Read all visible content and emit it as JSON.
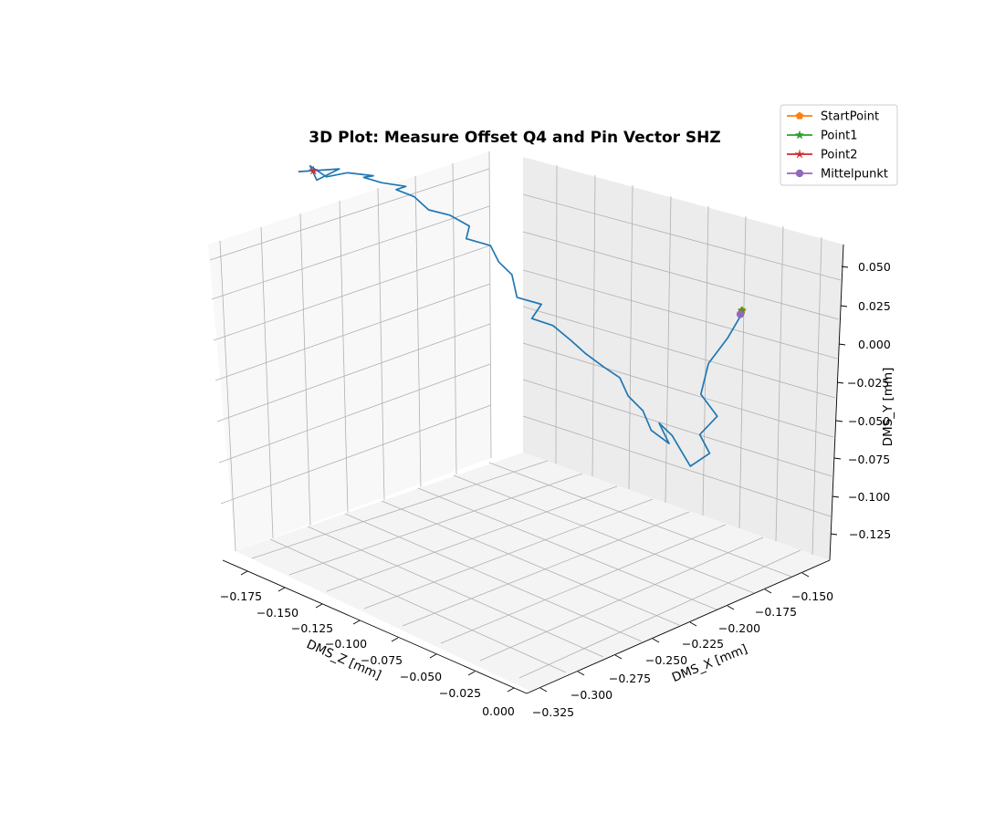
{
  "chart_data": {
    "type": "line",
    "projection": "3d",
    "title": "3D Plot: Measure Offset Q4 and Pin Vector SHZ",
    "axes": {
      "x": {
        "label": "DMS_X [mm]",
        "range": [
          -0.325,
          -0.14
        ],
        "ticks": [
          "−0.325",
          "−0.300",
          "−0.275",
          "−0.250",
          "−0.225",
          "−0.200",
          "−0.175",
          "−0.150"
        ]
      },
      "y": {
        "label": "DMS_Y [mm]",
        "range": [
          -0.14,
          0.06
        ],
        "ticks": [
          "−0.125",
          "−0.100",
          "−0.075",
          "−0.050",
          "−0.025",
          "0.000",
          "0.025",
          "0.050"
        ]
      },
      "z": {
        "label": "DMS_Z [mm]",
        "range": [
          -0.19,
          0.0
        ],
        "ticks": [
          "−0.175",
          "−0.150",
          "−0.125",
          "−0.100",
          "−0.075",
          "−0.050",
          "−0.025",
          "0.000"
        ]
      }
    },
    "grid": true,
    "legend_position": "top-right",
    "series": [
      {
        "name": "",
        "color": "#1f77b4",
        "marker": "none",
        "note_points": "[DMS_X, DMS_Y, DMS_Z] in mm, approximate readings",
        "points": [
          [
            -0.163,
            -0.027,
            -0.03
          ],
          [
            -0.168,
            -0.042,
            -0.034
          ],
          [
            -0.174,
            -0.058,
            -0.04
          ],
          [
            -0.176,
            -0.078,
            -0.043
          ],
          [
            -0.171,
            -0.092,
            -0.038
          ],
          [
            -0.176,
            -0.104,
            -0.044
          ],
          [
            -0.174,
            -0.115,
            -0.04
          ],
          [
            -0.179,
            -0.124,
            -0.047
          ],
          [
            -0.181,
            -0.117,
            -0.049
          ],
          [
            -0.184,
            -0.105,
            -0.053
          ],
          [
            -0.188,
            -0.097,
            -0.057
          ],
          [
            -0.185,
            -0.11,
            -0.054
          ],
          [
            -0.19,
            -0.102,
            -0.06
          ],
          [
            -0.192,
            -0.09,
            -0.063
          ],
          [
            -0.196,
            -0.081,
            -0.068
          ],
          [
            -0.198,
            -0.07,
            -0.071
          ],
          [
            -0.203,
            -0.063,
            -0.076
          ],
          [
            -0.208,
            -0.055,
            -0.082
          ],
          [
            -0.212,
            -0.047,
            -0.087
          ],
          [
            -0.217,
            -0.038,
            -0.093
          ],
          [
            -0.224,
            -0.033,
            -0.099
          ],
          [
            -0.221,
            -0.024,
            -0.096
          ],
          [
            -0.228,
            -0.02,
            -0.104
          ],
          [
            -0.229,
            -0.006,
            -0.106
          ],
          [
            -0.233,
            0.002,
            -0.11
          ],
          [
            -0.235,
            0.012,
            -0.113
          ],
          [
            -0.242,
            0.016,
            -0.121
          ],
          [
            -0.241,
            0.024,
            -0.12
          ],
          [
            -0.247,
            0.031,
            -0.126
          ],
          [
            -0.253,
            0.034,
            -0.133
          ],
          [
            -0.257,
            0.042,
            -0.138
          ],
          [
            -0.262,
            0.046,
            -0.144
          ],
          [
            -0.259,
            0.048,
            -0.141
          ],
          [
            -0.266,
            0.05,
            -0.149
          ],
          [
            -0.271,
            0.053,
            -0.155
          ],
          [
            -0.268,
            0.054,
            -0.152
          ],
          [
            -0.276,
            0.056,
            -0.16
          ],
          [
            -0.282,
            0.053,
            -0.167
          ],
          [
            -0.287,
            0.06,
            -0.172
          ],
          [
            -0.285,
            0.051,
            -0.17
          ],
          [
            -0.278,
            0.058,
            -0.163
          ],
          [
            -0.29,
            0.056,
            -0.176
          ],
          [
            -0.286,
            0.057,
            -0.171
          ]
        ]
      },
      {
        "name": "StartPoint",
        "color": "#ff7f0e",
        "marker": "pentagon",
        "points": [
          [
            -0.162,
            -0.026,
            -0.031
          ]
        ]
      },
      {
        "name": "Point1",
        "color": "#2ca02c",
        "marker": "star",
        "points": [
          [
            -0.162,
            -0.026,
            -0.031
          ]
        ]
      },
      {
        "name": "Point2",
        "color": "#d62728",
        "marker": "star-thin",
        "points": [
          [
            -0.286,
            0.057,
            -0.171
          ]
        ]
      },
      {
        "name": "Mittelpunkt",
        "color": "#9467bd",
        "marker": "circle",
        "points": [
          [
            -0.164,
            -0.027,
            -0.03
          ]
        ]
      }
    ]
  }
}
